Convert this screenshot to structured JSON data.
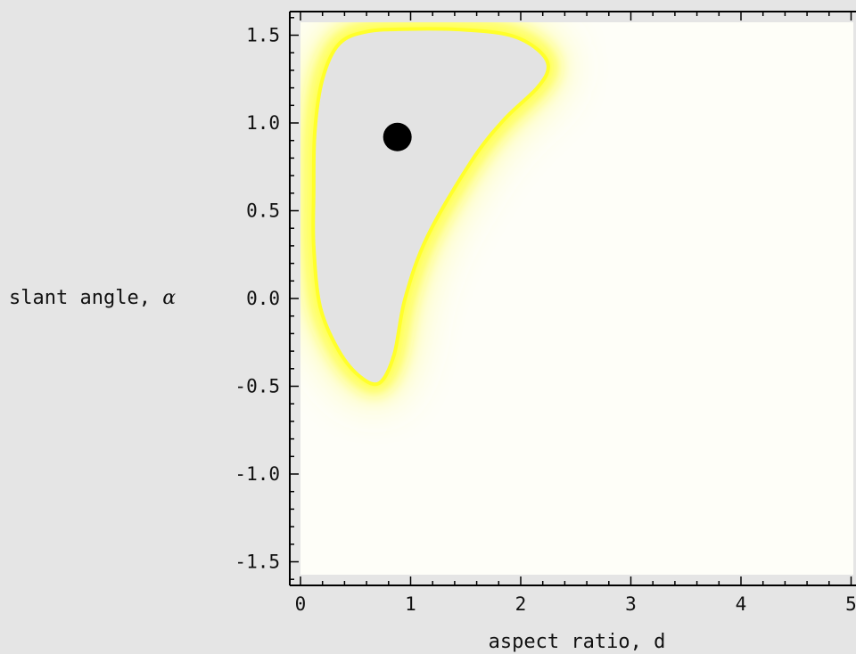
{
  "chart_data": {
    "type": "heatmap",
    "title": "",
    "xlabel": "aspect ratio, d",
    "ylabel_text": "slant angle, ",
    "ylabel_symbol": "α",
    "xlim": [
      -0.1,
      5.0
    ],
    "ylim": [
      -1.63,
      1.63
    ],
    "xticks": [
      {
        "value": 0,
        "label": "0"
      },
      {
        "value": 1,
        "label": "1"
      },
      {
        "value": 2,
        "label": "2"
      },
      {
        "value": 3,
        "label": "3"
      },
      {
        "value": 4,
        "label": "4"
      },
      {
        "value": 5,
        "label": "5"
      }
    ],
    "yticks": [
      {
        "value": 1.5,
        "label": "1.5"
      },
      {
        "value": 1.0,
        "label": "1.0"
      },
      {
        "value": 0.5,
        "label": "0.5"
      },
      {
        "value": 0.0,
        "label": "0.0"
      },
      {
        "value": -0.5,
        "label": "-0.5"
      },
      {
        "value": -1.0,
        "label": "-1.0"
      },
      {
        "value": -1.5,
        "label": "-1.5"
      }
    ],
    "region_boundary": [
      [
        0.12,
        0.6
      ],
      [
        0.13,
        0.95
      ],
      [
        0.2,
        1.25
      ],
      [
        0.35,
        1.45
      ],
      [
        0.6,
        1.52
      ],
      [
        1.0,
        1.535
      ],
      [
        1.5,
        1.53
      ],
      [
        1.9,
        1.5
      ],
      [
        2.15,
        1.42
      ],
      [
        2.25,
        1.32
      ],
      [
        2.15,
        1.2
      ],
      [
        1.85,
        1.02
      ],
      [
        1.55,
        0.78
      ],
      [
        1.15,
        0.35
      ],
      [
        0.95,
        0.0
      ],
      [
        0.85,
        -0.32
      ],
      [
        0.72,
        -0.48
      ],
      [
        0.55,
        -0.45
      ],
      [
        0.35,
        -0.3
      ],
      [
        0.18,
        -0.05
      ],
      [
        0.12,
        0.3
      ]
    ],
    "marked_point": {
      "x": 0.88,
      "y": 0.92
    },
    "colors": {
      "background": "#e5e5e5",
      "field": "#fefef8",
      "region_fill": "#e3e3e3",
      "boundary": "#ffff2a",
      "point": "#000000",
      "axis": "#000000"
    }
  }
}
